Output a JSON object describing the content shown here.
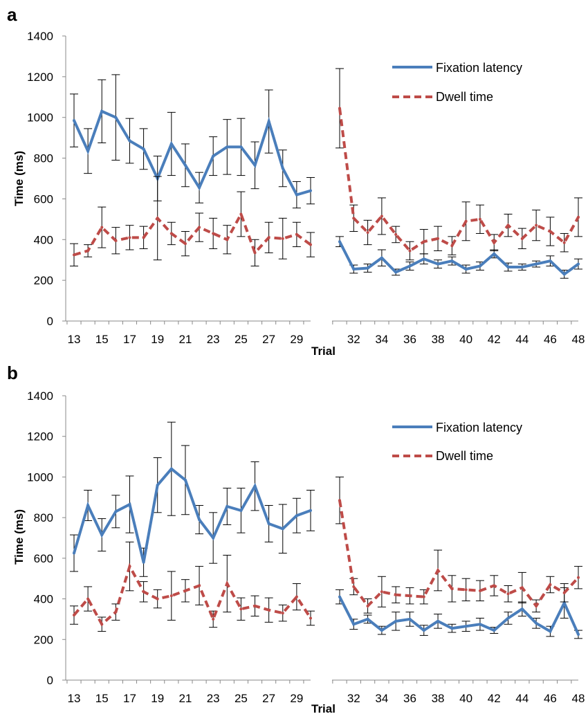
{
  "legend": {
    "fixation": "Fixation latency",
    "dwell": "Dwell time"
  },
  "colors": {
    "fixation": "#4a7ebb",
    "dwell": "#be4b48",
    "axis": "#888888",
    "error_bar": "#000000"
  },
  "chart_data": [
    {
      "panel": "a",
      "type": "line",
      "ylabel": "Time (ms)",
      "xlabel": "Trial",
      "ylim": [
        0,
        1400
      ],
      "yticks": [
        0,
        200,
        400,
        600,
        800,
        1000,
        1200,
        1400
      ],
      "grid": false,
      "legend_position": "top-right",
      "segments": [
        {
          "x": [
            13,
            14,
            15,
            16,
            17,
            18,
            19,
            20,
            21,
            22,
            23,
            24,
            25,
            26,
            27,
            28,
            29,
            30
          ],
          "xticks": [
            13,
            15,
            17,
            19,
            21,
            23,
            25,
            27,
            29
          ],
          "series": [
            {
              "name": "Fixation latency",
              "values": [
                985,
                835,
                1030,
                1000,
                885,
                845,
                700,
                870,
                765,
                655,
                810,
                855,
                855,
                765,
                980,
                750,
                620,
                640
              ],
              "errors": [
                130,
                110,
                155,
                210,
                110,
                100,
                110,
                155,
                105,
                75,
                95,
                135,
                140,
                115,
                155,
                90,
                65,
                65
              ]
            },
            {
              "name": "Dwell time",
              "values": [
                325,
                345,
                460,
                395,
                410,
                410,
                505,
                430,
                380,
                460,
                430,
                400,
                525,
                335,
                410,
                405,
                425,
                375
              ],
              "errors": [
                55,
                30,
                100,
                65,
                60,
                55,
                205,
                55,
                60,
                70,
                75,
                70,
                110,
                65,
                75,
                100,
                60,
                60
              ]
            }
          ]
        },
        {
          "x": [
            31,
            32,
            33,
            34,
            35,
            36,
            37,
            38,
            39,
            40,
            41,
            42,
            43,
            44,
            45,
            46,
            47,
            48
          ],
          "xticks": [
            32,
            34,
            36,
            38,
            40,
            42,
            44,
            46,
            48
          ],
          "series": [
            {
              "name": "Fixation latency",
              "values": [
                390,
                255,
                260,
                310,
                240,
                270,
                305,
                280,
                295,
                255,
                270,
                330,
                265,
                265,
                280,
                295,
                230,
                280
              ],
              "errors": [
                25,
                20,
                20,
                40,
                15,
                20,
                25,
                20,
                20,
                20,
                20,
                20,
                20,
                15,
                15,
                25,
                20,
                25
              ]
            },
            {
              "name": "Dwell time",
              "values": [
                1045,
                505,
                435,
                515,
                425,
                345,
                390,
                405,
                370,
                490,
                500,
                385,
                470,
                405,
                470,
                440,
                385,
                510
              ],
              "errors": [
                195,
                65,
                60,
                90,
                40,
                45,
                60,
                60,
                45,
                95,
                70,
                40,
                55,
                50,
                75,
                70,
                45,
                95
              ]
            }
          ]
        }
      ]
    },
    {
      "panel": "b",
      "type": "line",
      "ylabel": "Time (ms)",
      "xlabel": "Trial",
      "ylim": [
        0,
        1400
      ],
      "yticks": [
        0,
        200,
        400,
        600,
        800,
        1000,
        1200,
        1400
      ],
      "grid": false,
      "legend_position": "top-right",
      "segments": [
        {
          "x": [
            13,
            14,
            15,
            16,
            17,
            18,
            19,
            20,
            21,
            22,
            23,
            24,
            25,
            26,
            27,
            28,
            29,
            30
          ],
          "xticks": [
            13,
            15,
            17,
            19,
            21,
            23,
            25,
            27,
            29
          ],
          "series": [
            {
              "name": "Fixation latency",
              "values": [
                625,
                860,
                715,
                830,
                865,
                580,
                960,
                1040,
                985,
                790,
                700,
                855,
                835,
                955,
                770,
                745,
                810,
                835
              ],
              "errors": [
                90,
                75,
                80,
                80,
                140,
                70,
                135,
                230,
                170,
                70,
                125,
                90,
                110,
                120,
                90,
                120,
                85,
                100
              ]
            },
            {
              "name": "Dwell time",
              "values": [
                320,
                400,
                275,
                335,
                560,
                435,
                400,
                415,
                440,
                465,
                300,
                475,
                350,
                365,
                345,
                330,
                410,
                305
              ],
              "errors": [
                45,
                60,
                35,
                40,
                120,
                50,
                45,
                120,
                55,
                95,
                40,
                140,
                55,
                50,
                60,
                40,
                65,
                35
              ]
            }
          ]
        },
        {
          "x": [
            31,
            32,
            33,
            34,
            35,
            36,
            37,
            38,
            39,
            40,
            41,
            42,
            43,
            44,
            45,
            46,
            47,
            48
          ],
          "xticks": [
            32,
            34,
            36,
            38,
            40,
            42,
            44,
            46,
            48
          ],
          "series": [
            {
              "name": "Fixation latency",
              "values": [
                410,
                275,
                300,
                245,
                290,
                300,
                245,
                290,
                255,
                265,
                275,
                245,
                305,
                350,
                280,
                240,
                380,
                225
              ],
              "errors": [
                35,
                25,
                20,
                20,
                45,
                35,
                25,
                35,
                20,
                25,
                30,
                15,
                30,
                35,
                25,
                25,
                75,
                20
              ]
            },
            {
              "name": "Dwell time",
              "values": [
                885,
                460,
                365,
                435,
                420,
                415,
                410,
                540,
                450,
                445,
                440,
                465,
                425,
                455,
                365,
                470,
                430,
                505
              ],
              "errors": [
                115,
                40,
                35,
                75,
                40,
                40,
                35,
                100,
                65,
                55,
                50,
                50,
                40,
                75,
                30,
                40,
                45,
                55
              ]
            }
          ]
        }
      ]
    }
  ]
}
